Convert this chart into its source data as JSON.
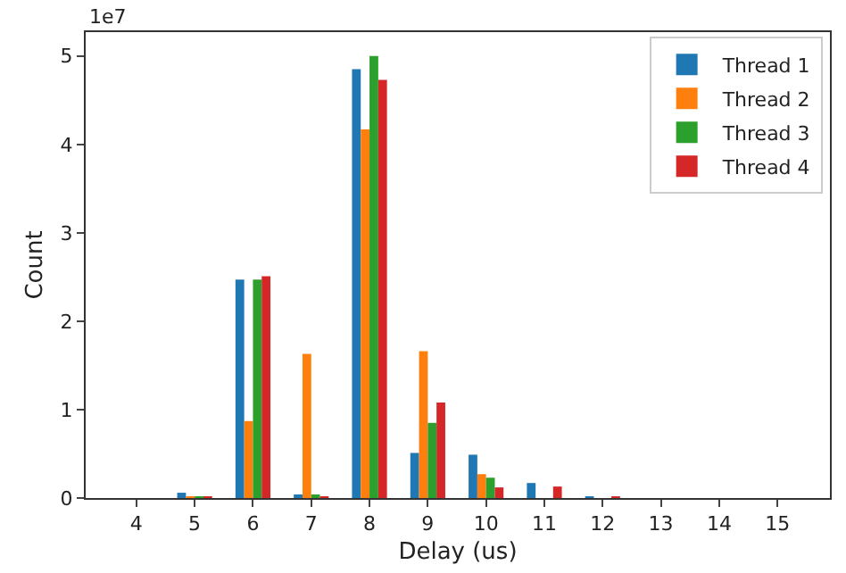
{
  "chart_data": {
    "type": "bar",
    "xlabel": "Delay (us)",
    "ylabel": "Count",
    "x": [
      4,
      5,
      6,
      7,
      8,
      9,
      10,
      11,
      12,
      13,
      14,
      15
    ],
    "series": [
      {
        "name": "Thread 1",
        "color": "#1f77b4",
        "values": [
          0,
          0.06,
          2.47,
          0.03,
          4.85,
          0.51,
          0.49,
          0.17,
          0.02,
          0,
          0,
          0
        ]
      },
      {
        "name": "Thread 2",
        "color": "#ff7f0e",
        "values": [
          0,
          0.02,
          0.87,
          1.63,
          4.17,
          1.66,
          0.27,
          0,
          0,
          0,
          0,
          0
        ]
      },
      {
        "name": "Thread 3",
        "color": "#2ca02c",
        "values": [
          0,
          0.02,
          2.47,
          0.03,
          5.0,
          0.85,
          0.23,
          0,
          0,
          0,
          0,
          0
        ]
      },
      {
        "name": "Thread 4",
        "color": "#d62728",
        "values": [
          0,
          0.02,
          2.51,
          0.01,
          4.73,
          1.08,
          0.12,
          0.13,
          0.01,
          0,
          0,
          0
        ]
      }
    ],
    "xlim": [
      3.13,
      15.9
    ],
    "ylim": [
      0,
      5.27
    ],
    "xticks": [
      4,
      5,
      6,
      7,
      8,
      9,
      10,
      11,
      12,
      13,
      14,
      15
    ],
    "yticks": [
      0,
      1,
      2,
      3,
      4,
      5
    ],
    "annotations": [
      "1e7"
    ],
    "legend": "top right"
  }
}
